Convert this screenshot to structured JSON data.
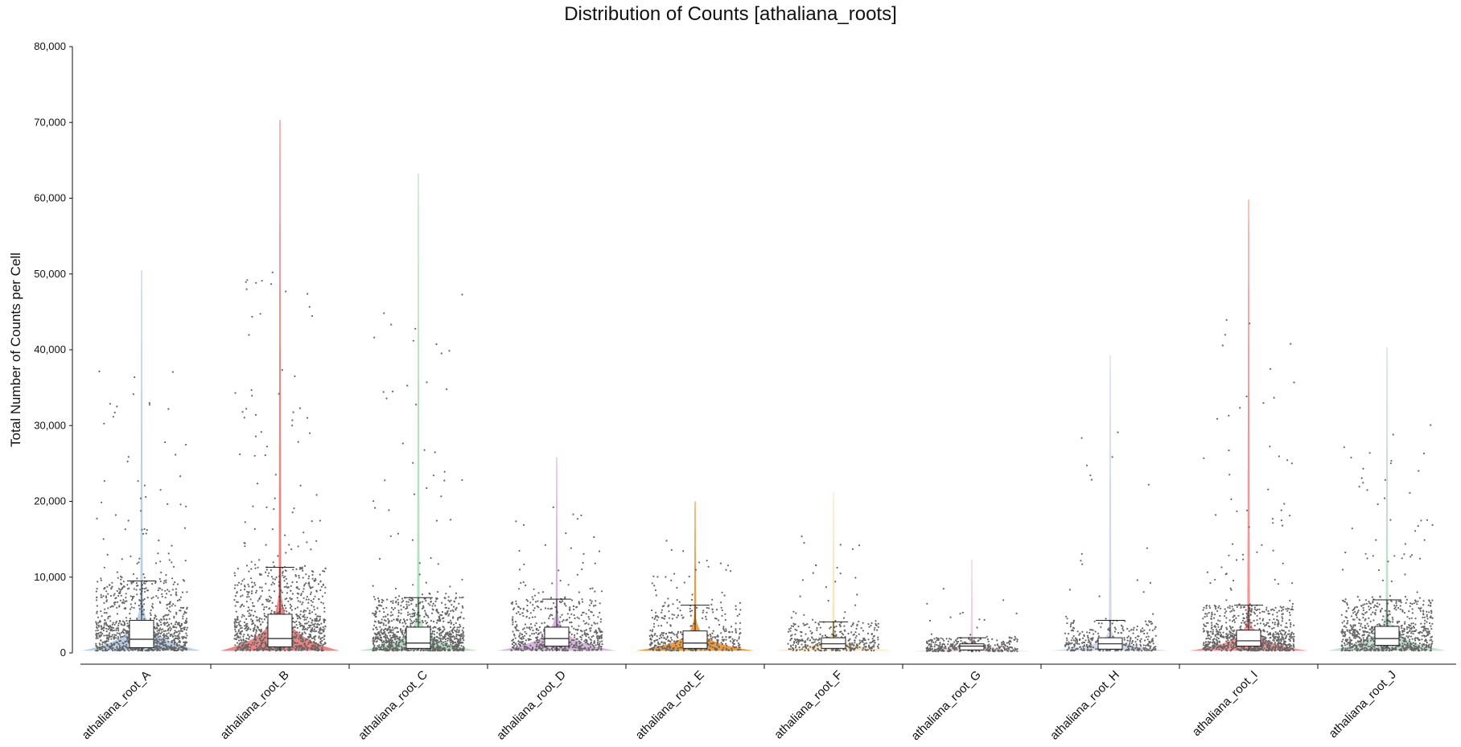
{
  "chart_data": {
    "type": "violin",
    "title": "Distribution of Counts [athaliana_roots]",
    "xlabel": "",
    "ylabel": "Total Number of Counts per Cell",
    "ylim": [
      0,
      80000
    ],
    "yticks": [
      "0",
      "10,000",
      "20,000",
      "30,000",
      "40,000",
      "50,000",
      "60,000",
      "70,000",
      "80,000"
    ],
    "grid": false,
    "legend": "none",
    "categories": [
      "athaliana_root_A",
      "athaliana_root_B",
      "athaliana_root_C",
      "athaliana_root_D",
      "athaliana_root_E",
      "athaliana_root_F",
      "athaliana_root_G",
      "athaliana_root_H",
      "athaliana_root_I",
      "athaliana_root_J"
    ],
    "colors": [
      "#aec7e8",
      "#ef6f6c",
      "#a8dcb7",
      "#d4a8dc",
      "#f08a1a",
      "#fbe0b3",
      "#f0c8dc",
      "#c9d2ea",
      "#f28482",
      "#b5dcc7"
    ],
    "series": [
      {
        "max": 50500,
        "whisker_low": 300,
        "q1": 700,
        "median": 1800,
        "q3": 4300,
        "whisker_high": 9500,
        "point_density": 1.0
      },
      {
        "max": 70300,
        "whisker_low": 300,
        "q1": 800,
        "median": 1900,
        "q3": 5100,
        "whisker_high": 11300,
        "point_density": 1.0
      },
      {
        "max": 63200,
        "whisker_low": 300,
        "q1": 600,
        "median": 1300,
        "q3": 3400,
        "whisker_high": 7300,
        "point_density": 1.0
      },
      {
        "max": 25800,
        "whisker_low": 300,
        "q1": 900,
        "median": 1900,
        "q3": 3400,
        "whisker_high": 7100,
        "point_density": 0.55
      },
      {
        "max": 20000,
        "whisker_low": 300,
        "q1": 600,
        "median": 1300,
        "q3": 2900,
        "whisker_high": 6300,
        "point_density": 0.4
      },
      {
        "max": 21200,
        "whisker_low": 300,
        "q1": 600,
        "median": 1200,
        "q3": 2000,
        "whisker_high": 4100,
        "point_density": 0.35
      },
      {
        "max": 12300,
        "whisker_low": 200,
        "q1": 400,
        "median": 900,
        "q3": 1200,
        "whisker_high": 2000,
        "point_density": 0.3
      },
      {
        "max": 39300,
        "whisker_low": 300,
        "q1": 500,
        "median": 1200,
        "q3": 2000,
        "whisker_high": 4300,
        "point_density": 0.35
      },
      {
        "max": 59800,
        "whisker_low": 300,
        "q1": 900,
        "median": 1600,
        "q3": 3000,
        "whisker_high": 6300,
        "point_density": 0.85
      },
      {
        "max": 40300,
        "whisker_low": 300,
        "q1": 1000,
        "median": 1900,
        "q3": 3500,
        "whisker_high": 7000,
        "point_density": 0.8
      }
    ]
  }
}
